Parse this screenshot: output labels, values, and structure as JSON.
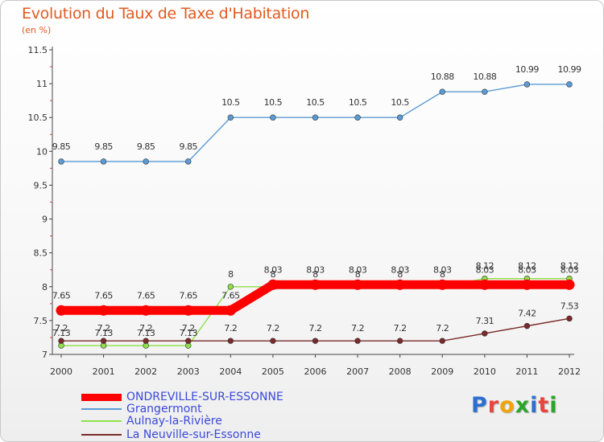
{
  "title": "Evolution du Taux de Taxe d'Habitation",
  "subtitle": "(en %)",
  "chart_data": {
    "type": "line",
    "ylim": [
      7,
      11.5
    ],
    "yticks": [
      "7",
      "7.5",
      "8",
      "8.5",
      "9",
      "9.5",
      "10",
      "10.5",
      "11",
      "11.5"
    ],
    "categories": [
      "2000",
      "2001",
      "2002",
      "2003",
      "2004",
      "2005",
      "2006",
      "2007",
      "2008",
      "2009",
      "2010",
      "2011",
      "2012"
    ],
    "grid": false,
    "legend_position": "bottom",
    "series": [
      {
        "name": "ONDREVILLE-SUR-ESSONNE",
        "color": "#ff0000",
        "values": [
          7.65,
          7.65,
          7.65,
          7.65,
          7.65,
          8.03,
          8.03,
          8.03,
          8.03,
          8.03,
          8.03,
          8.03,
          8.03
        ]
      },
      {
        "name": "Grangermont",
        "color": "#5b9bd5",
        "values": [
          9.85,
          9.85,
          9.85,
          9.85,
          10.5,
          10.5,
          10.5,
          10.5,
          10.5,
          10.88,
          10.88,
          10.99,
          10.99
        ]
      },
      {
        "name": "Aulnay-la-Rivière",
        "color": "#8ee04a",
        "values": [
          7.13,
          7.13,
          7.13,
          7.13,
          8,
          8,
          8,
          8,
          8,
          8,
          8.12,
          8.12,
          8.12
        ]
      },
      {
        "name": "La Neuville-sur-Essonne",
        "color": "#7a2a2a",
        "values": [
          7.2,
          7.2,
          7.2,
          7.2,
          7.2,
          7.2,
          7.2,
          7.2,
          7.2,
          7.2,
          7.31,
          7.42,
          7.53
        ]
      }
    ]
  },
  "logo": {
    "letters": [
      "P",
      "r",
      "o",
      "x",
      "i",
      "t",
      "i"
    ],
    "colors": [
      "#2d6fd1",
      "#e8453c",
      "#f0a30a",
      "#2aa52a",
      "#2d6fd1",
      "#e8453c",
      "#2aa52a"
    ]
  }
}
